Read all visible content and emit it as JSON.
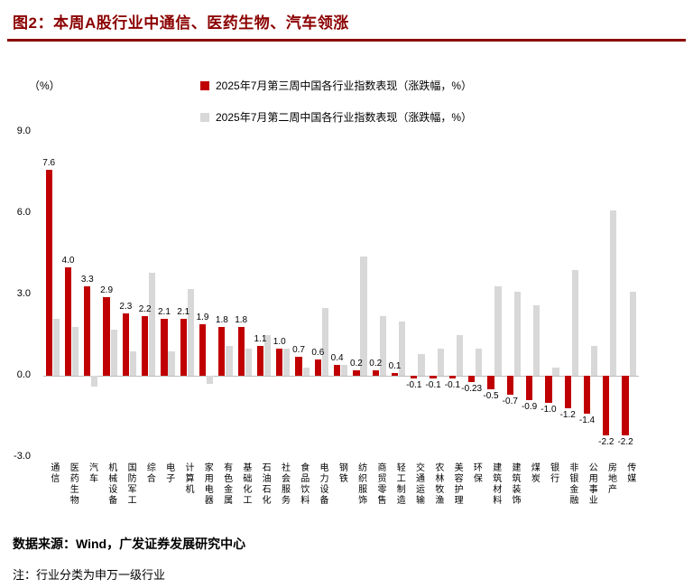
{
  "title": "图2：本周A股行业中通信、医药生物、汽车领涨",
  "footer": {
    "source": "数据来源：Wind，广发证券发展研究中心",
    "note": "注：行业分类为申万一级行业"
  },
  "chart_data": {
    "type": "bar",
    "unit_label": "（%）",
    "legend_position": "top",
    "grid": false,
    "ylim": [
      -3,
      9
    ],
    "yticks": [
      9.0,
      6.0,
      3.0,
      0.0,
      -3.0
    ],
    "legend": [
      {
        "label": "2025年7月第三周中国各行业指数表现（涨跌幅，%）",
        "color": "#c00000"
      },
      {
        "label": "2025年7月第二周中国各行业指数表现（涨跌幅，%）",
        "color": "#d8d8d8"
      }
    ],
    "categories": [
      "通信",
      "医药生物",
      "汽车",
      "机械设备",
      "国防军工",
      "综合",
      "电子",
      "计算机",
      "家用电器",
      "有色金属",
      "基础化工",
      "石油石化",
      "社会服务",
      "食品饮料",
      "电力设备",
      "钢铁",
      "纺织服饰",
      "商贸零售",
      "轻工制造",
      "交通运输",
      "农林牧渔",
      "美容护理",
      "环保",
      "建筑材料",
      "建筑装饰",
      "煤炭",
      "银行",
      "非银金融",
      "公用事业",
      "房地产",
      "传媒"
    ],
    "series": [
      {
        "name": "2025年7月第三周中国各行业指数表现（涨跌幅，%）",
        "color": "#c00000",
        "values": [
          7.6,
          4.0,
          3.3,
          2.9,
          2.3,
          2.2,
          2.1,
          2.1,
          1.9,
          1.8,
          1.8,
          1.1,
          1.0,
          0.7,
          0.6,
          0.4,
          0.2,
          0.2,
          0.1,
          -0.1,
          -0.1,
          -0.1,
          -0.23,
          -0.5,
          -0.7,
          -0.9,
          -1.0,
          -1.2,
          -1.4,
          -2.2,
          -2.2
        ],
        "labels": [
          "7.6",
          "4.0",
          "3.3",
          "2.9",
          "2.3",
          "2.2",
          "2.1",
          "2.1",
          "1.9",
          "1.8",
          "1.8",
          "1.1",
          "1.0",
          "0.7",
          "0.6",
          "0.4",
          "0.2",
          "0.2",
          "0.1",
          "-0.1",
          "-0.1",
          "-0.1",
          "-0.23",
          "-0.5",
          "-0.7",
          "-0.9",
          "-1.0",
          "-1.2",
          "-1.4",
          "-2.2",
          "-2.2"
        ]
      },
      {
        "name": "2025年7月第二周中国各行业指数表现（涨跌幅，%）",
        "color": "#d8d8d8",
        "values": [
          2.1,
          1.8,
          -0.4,
          1.7,
          0.9,
          3.8,
          0.9,
          3.2,
          -0.3,
          1.1,
          1.0,
          1.5,
          1.0,
          0.3,
          2.5,
          0.4,
          4.4,
          2.2,
          2.0,
          0.8,
          1.0,
          1.5,
          1.0,
          3.3,
          3.1,
          2.6,
          0.3,
          3.9,
          1.1,
          6.1,
          3.1
        ]
      }
    ]
  }
}
